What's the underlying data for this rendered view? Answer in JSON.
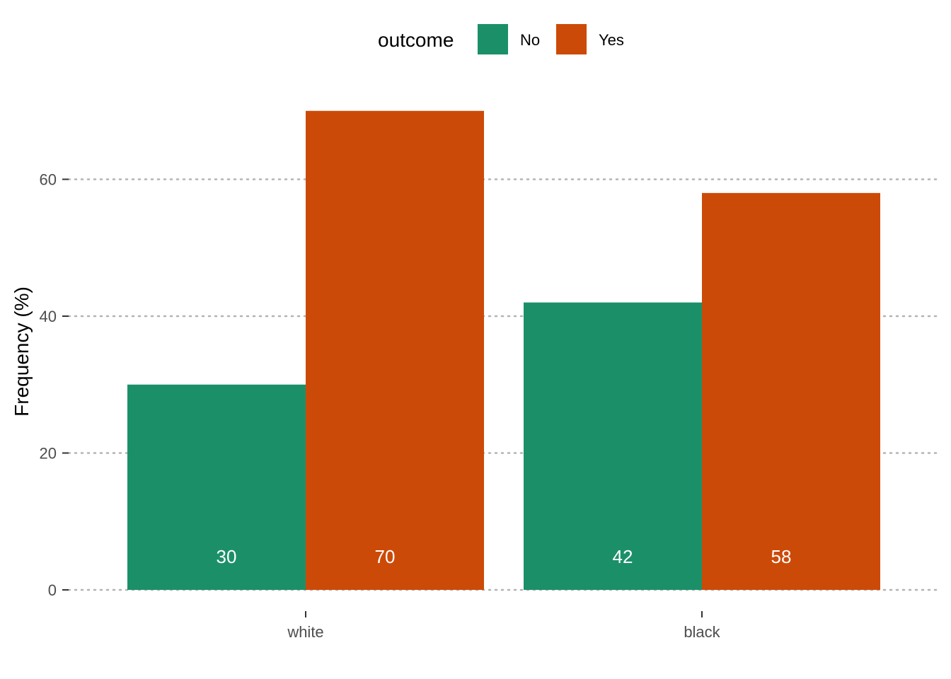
{
  "chart_data": {
    "type": "bar",
    "categories": [
      "white",
      "black"
    ],
    "series": [
      {
        "name": "No",
        "values": [
          30,
          42
        ],
        "color": "#1b9068"
      },
      {
        "name": "Yes",
        "values": [
          70,
          58
        ],
        "color": "#cc4a08"
      }
    ],
    "data_labels": [
      [
        "30",
        "42"
      ],
      [
        "70",
        "58"
      ]
    ],
    "ylabel": "Frequency (%)",
    "xlabel": "",
    "ylim": [
      0,
      72
    ],
    "yticks": [
      0,
      20,
      40,
      60
    ],
    "ytick_labels": [
      "0",
      "20",
      "40",
      "60"
    ],
    "grid": "horizontal-dotted",
    "legend": {
      "title": "outcome",
      "position": "top",
      "entries": [
        "No",
        "Yes"
      ]
    }
  }
}
